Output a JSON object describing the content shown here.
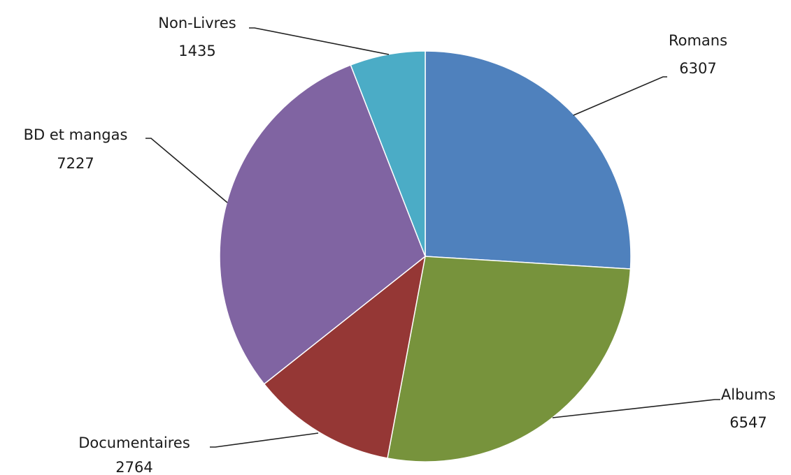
{
  "chart_data": {
    "type": "pie",
    "start_angle_deg": 0,
    "direction": "clockwise",
    "slices": [
      {
        "label": "Romans",
        "value": 6307,
        "value_label": "6307",
        "color": "#4F81BD"
      },
      {
        "label": "Albums",
        "value": 6547,
        "value_label": "6547",
        "color": "#77933C"
      },
      {
        "label": "Documentaires",
        "value": 2764,
        "value_label": "2764",
        "color": "#953735"
      },
      {
        "label": "BD et  mangas",
        "value": 7227,
        "value_label": "7227",
        "color": "#8064A2"
      },
      {
        "label": "Non-Livres",
        "value": 1435,
        "value_label": "1435",
        "color": "#4BACC6"
      }
    ],
    "legend": "none",
    "data_labels": "outside-with-leader-lines"
  }
}
